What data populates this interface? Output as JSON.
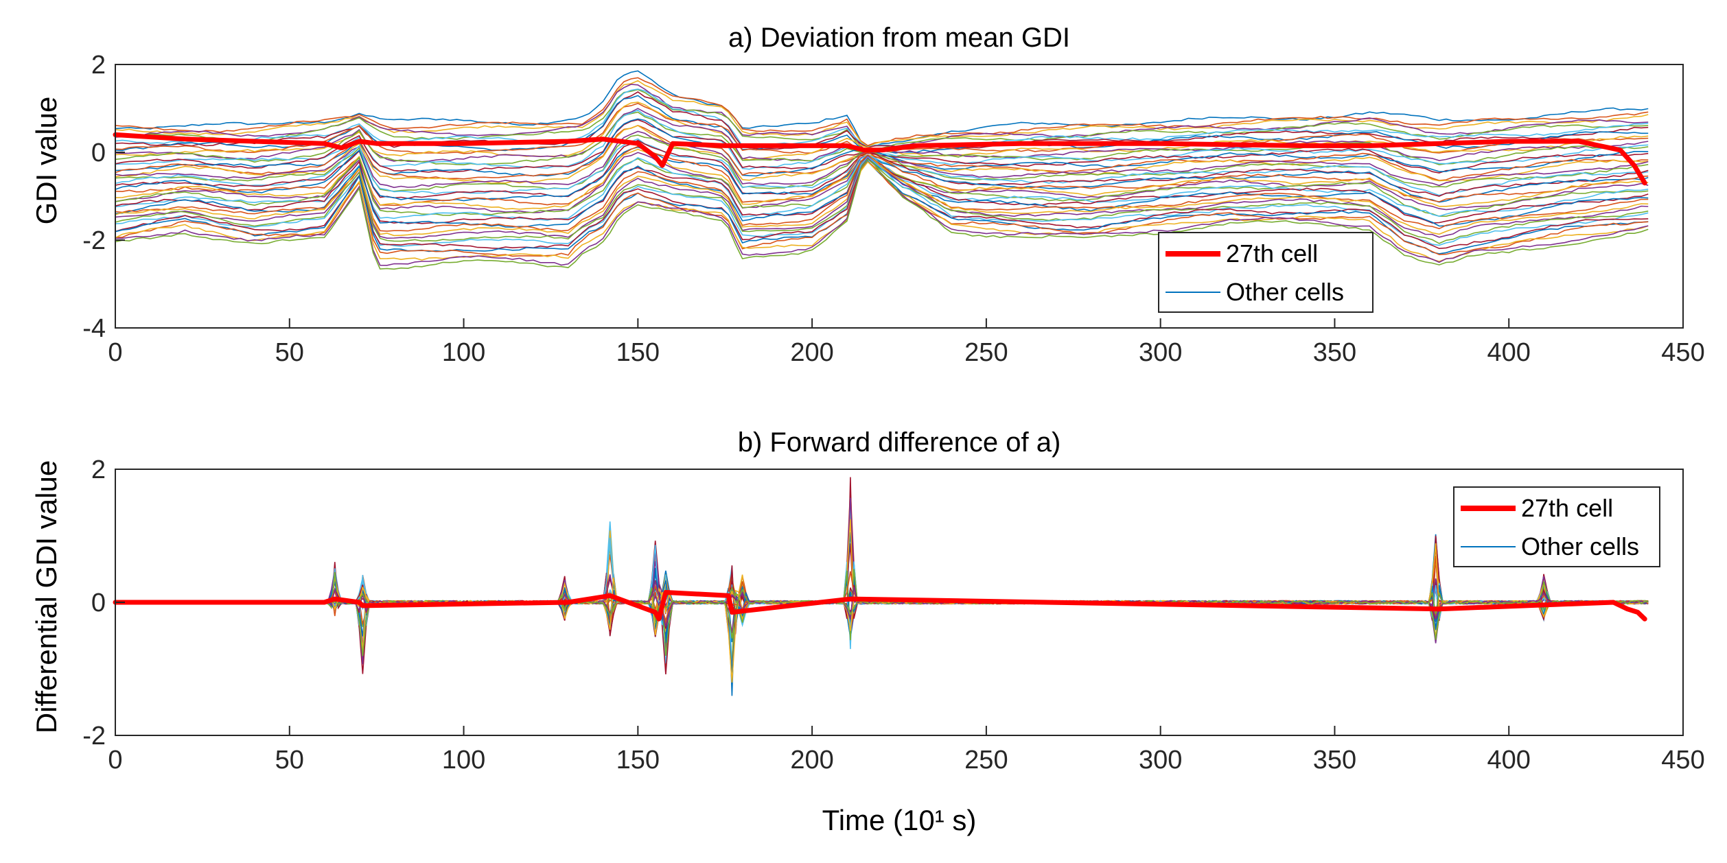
{
  "chart_data": [
    {
      "type": "line",
      "title": "a) Deviation from mean GDI",
      "xlabel": "",
      "ylabel": "GDI value",
      "xlim": [
        0,
        450
      ],
      "ylim": [
        -4,
        2
      ],
      "xticks": [
        "0",
        "50",
        "100",
        "150",
        "200",
        "250",
        "300",
        "350",
        "400",
        "450"
      ],
      "yticks": [
        "-4",
        "-2",
        "0",
        "2"
      ],
      "legend": {
        "location": "bottom-right",
        "entries": [
          "27th cell",
          "Other cells"
        ]
      },
      "highlight_series": {
        "name": "27th cell",
        "color": "#ff0000",
        "x": [
          0,
          20,
          40,
          60,
          65,
          70,
          75,
          100,
          130,
          140,
          150,
          155,
          157,
          160,
          175,
          190,
          210,
          215,
          220,
          230,
          260,
          300,
          340,
          360,
          380,
          400,
          420,
          432,
          436,
          439
        ],
        "values": [
          0.4,
          0.3,
          0.25,
          0.2,
          0.1,
          0.25,
          0.2,
          0.2,
          0.25,
          0.3,
          0.2,
          -0.1,
          -0.3,
          0.2,
          0.15,
          0.15,
          0.15,
          0.05,
          0.05,
          0.15,
          0.2,
          0.2,
          0.15,
          0.15,
          0.2,
          0.25,
          0.25,
          0.05,
          -0.3,
          -0.7
        ]
      },
      "other_cells": {
        "name": "Other cells",
        "count": 40,
        "upper_envelope": {
          "x": [
            0,
            20,
            40,
            60,
            70,
            80,
            120,
            135,
            140,
            145,
            150,
            160,
            175,
            180,
            200,
            210,
            215,
            225,
            240,
            260,
            300,
            340,
            360,
            380,
            400,
            420,
            440
          ],
          "values": [
            0.6,
            0.6,
            0.6,
            0.75,
            0.9,
            0.7,
            0.7,
            0.8,
            1.1,
            1.7,
            1.8,
            1.3,
            1.1,
            0.6,
            0.6,
            0.8,
            0.1,
            0.3,
            0.5,
            0.6,
            0.7,
            0.8,
            0.9,
            0.7,
            0.8,
            0.9,
            0.95
          ]
        },
        "lower_envelope": {
          "x": [
            0,
            20,
            40,
            60,
            70,
            75,
            100,
            130,
            135,
            140,
            145,
            150,
            160,
            175,
            180,
            200,
            210,
            215,
            225,
            240,
            260,
            280,
            300,
            320,
            360,
            370,
            380,
            390,
            400,
            420,
            440
          ],
          "values": [
            -2.1,
            -1.8,
            -2.1,
            -2.0,
            -0.8,
            -2.6,
            -2.5,
            -2.6,
            -2.2,
            -2.0,
            -1.4,
            -1.2,
            -1.4,
            -1.6,
            -2.4,
            -2.2,
            -1.6,
            -0.1,
            -1.0,
            -1.8,
            -1.9,
            -2.0,
            -1.8,
            -1.6,
            -1.7,
            -2.3,
            -2.6,
            -2.4,
            -2.3,
            -2.0,
            -1.8
          ]
        }
      }
    },
    {
      "type": "line",
      "title": "b) Forward difference of a)",
      "xlabel": "Time (10¹ s)",
      "ylabel": "Differential GDI value",
      "xlim": [
        0,
        450
      ],
      "ylim": [
        -2,
        2
      ],
      "xticks": [
        "0",
        "50",
        "100",
        "150",
        "200",
        "250",
        "300",
        "350",
        "400",
        "450"
      ],
      "yticks": [
        "-2",
        "0",
        "2"
      ],
      "legend": {
        "location": "top-right",
        "entries": [
          "27th cell",
          "Other cells"
        ]
      },
      "highlight_series": {
        "name": "27th cell",
        "color": "#ff0000",
        "x": [
          0,
          60,
          63,
          70,
          71,
          130,
          142,
          155,
          156,
          158,
          176,
          177,
          211,
          380,
          430,
          434,
          437,
          439
        ],
        "values": [
          0,
          0,
          0.05,
          0,
          -0.05,
          0,
          0.1,
          -0.15,
          -0.25,
          0.15,
          0.1,
          -0.15,
          0.05,
          -0.1,
          0,
          -0.1,
          -0.15,
          -0.25
        ]
      },
      "other_cells": {
        "name": "Other cells",
        "count": 40,
        "spikes": [
          {
            "x": 63,
            "max": 0.6,
            "min": -0.1
          },
          {
            "x": 71,
            "max": 0.3,
            "min": -1.1
          },
          {
            "x": 129,
            "max": 0.4,
            "min": -0.3
          },
          {
            "x": 142,
            "max": 1.35,
            "min": -0.5
          },
          {
            "x": 155,
            "max": 0.95,
            "min": -0.6
          },
          {
            "x": 158,
            "max": 0.5,
            "min": -1.1
          },
          {
            "x": 177,
            "max": 0.3,
            "min": -1.5
          },
          {
            "x": 180,
            "max": 0.5,
            "min": -0.4
          },
          {
            "x": 211,
            "max": 1.9,
            "min": -0.55
          },
          {
            "x": 379,
            "max": 1.1,
            "min": -0.75
          },
          {
            "x": 410,
            "max": 0.45,
            "min": -0.3
          }
        ]
      }
    }
  ]
}
